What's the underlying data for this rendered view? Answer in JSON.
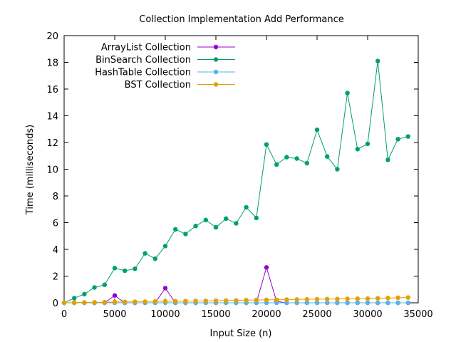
{
  "chart_data": {
    "type": "line",
    "title": "Collection Implementation Add Performance",
    "xlabel": "Input Size (n)",
    "ylabel": "Time (milliseconds)",
    "xlim": [
      0,
      35000
    ],
    "ylim": [
      0,
      20
    ],
    "x_ticks": [
      "0",
      "5000",
      "10000",
      "15000",
      "20000",
      "25000",
      "30000",
      "35000"
    ],
    "y_ticks": [
      "0",
      "2",
      "4",
      "6",
      "8",
      "10",
      "12",
      "14",
      "16",
      "18",
      "20"
    ],
    "grid": false,
    "legend_position": "top-left",
    "x": [
      0,
      1000,
      2000,
      3000,
      4000,
      5000,
      6000,
      7000,
      8000,
      9000,
      10000,
      11000,
      12000,
      13000,
      14000,
      15000,
      16000,
      17000,
      18000,
      19000,
      20000,
      21000,
      22000,
      23000,
      24000,
      25000,
      26000,
      27000,
      28000,
      29000,
      30000,
      31000,
      32000,
      33000,
      34000
    ],
    "series": [
      {
        "name": "ArrayList Collection",
        "color": "#9400d3",
        "values": [
          0,
          0,
          0,
          0,
          0,
          0.55,
          0,
          0,
          0,
          0,
          1.1,
          0,
          0,
          0,
          0,
          0,
          0,
          0,
          0,
          0,
          2.65,
          0.1,
          0,
          0,
          0,
          0,
          0,
          0,
          0,
          0,
          0,
          0,
          0,
          0,
          0
        ]
      },
      {
        "name": "BinSearch Collection",
        "color": "#009e73",
        "values": [
          0,
          0.35,
          0.65,
          1.15,
          1.35,
          2.6,
          2.4,
          2.55,
          3.7,
          3.3,
          4.25,
          5.5,
          5.15,
          5.75,
          6.2,
          5.65,
          6.3,
          5.95,
          7.15,
          6.35,
          11.85,
          10.35,
          10.9,
          10.8,
          10.45,
          12.95,
          10.95,
          10.0,
          15.7,
          11.5,
          11.9,
          18.1,
          10.7,
          12.25,
          12.45
        ]
      },
      {
        "name": "HashTable Collection",
        "color": "#56b4e9",
        "values": [
          0,
          0,
          0,
          0,
          0,
          0,
          0,
          0,
          0,
          0,
          0,
          0,
          0,
          0,
          0,
          0,
          0,
          0,
          0,
          0,
          0,
          0,
          0,
          0,
          0,
          0,
          0,
          0,
          0,
          0,
          0,
          0,
          0,
          0,
          0
        ]
      },
      {
        "name": "BST Collection",
        "color": "#e69f00",
        "values": [
          0,
          0.02,
          0.03,
          0.04,
          0.05,
          0.06,
          0.07,
          0.08,
          0.09,
          0.1,
          0.11,
          0.12,
          0.13,
          0.14,
          0.15,
          0.16,
          0.17,
          0.18,
          0.2,
          0.21,
          0.22,
          0.23,
          0.24,
          0.25,
          0.26,
          0.27,
          0.28,
          0.29,
          0.3,
          0.31,
          0.32,
          0.34,
          0.36,
          0.38,
          0.4
        ]
      }
    ]
  }
}
